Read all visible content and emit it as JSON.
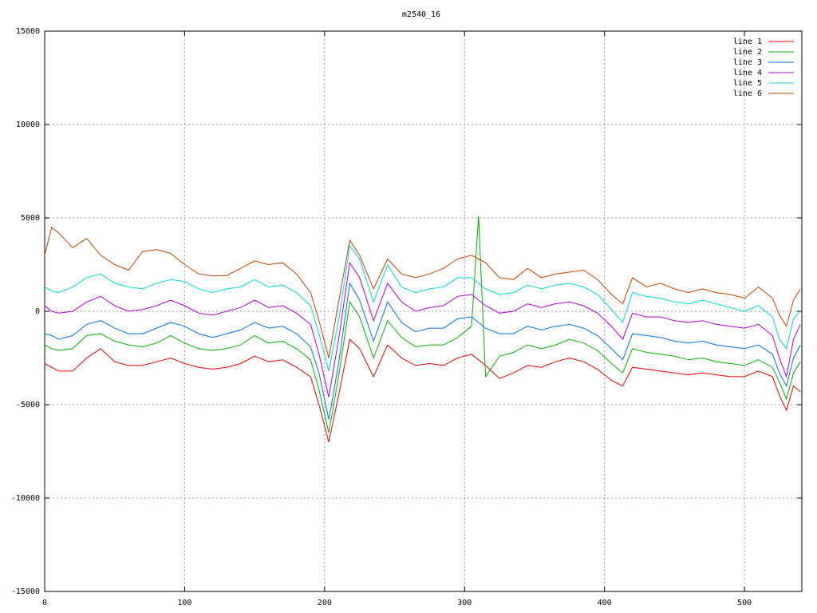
{
  "chart_data": {
    "type": "line",
    "title": "m2540_16",
    "x": [
      0,
      5,
      10,
      20,
      30,
      40,
      50,
      60,
      70,
      80,
      90,
      100,
      110,
      120,
      130,
      140,
      150,
      160,
      170,
      180,
      190,
      196,
      203,
      210,
      218,
      225,
      235,
      245,
      255,
      265,
      275,
      285,
      295,
      305,
      310,
      315,
      325,
      335,
      345,
      355,
      365,
      375,
      385,
      395,
      405,
      413,
      420,
      430,
      440,
      450,
      460,
      470,
      480,
      490,
      500,
      510,
      520,
      525,
      530,
      535,
      540
    ],
    "series": [
      {
        "name": "line 1",
        "color": "#e00000",
        "values": [
          -2800,
          -3000,
          -3200,
          -3200,
          -2500,
          -2000,
          -2700,
          -2900,
          -2900,
          -2700,
          -2500,
          -2800,
          -3000,
          -3100,
          -3000,
          -2800,
          -2400,
          -2700,
          -2600,
          -3000,
          -3500,
          -5000,
          -7000,
          -4500,
          -1500,
          -2000,
          -3500,
          -1800,
          -2500,
          -2900,
          -2800,
          -2900,
          -2500,
          -2300,
          -2600,
          -2900,
          -3600,
          -3300,
          -2900,
          -3000,
          -2700,
          -2500,
          -2700,
          -3100,
          -3700,
          -4000,
          -3000,
          -3100,
          -3200,
          -3300,
          -3400,
          -3300,
          -3400,
          -3500,
          -3500,
          -3200,
          -3500,
          -4500,
          -5300,
          -4000,
          -4300
        ]
      },
      {
        "name": "line 2",
        "color": "#00b000",
        "values": [
          -1800,
          -2000,
          -2100,
          -2000,
          -1300,
          -1200,
          -1600,
          -1800,
          -1900,
          -1700,
          -1300,
          -1700,
          -2000,
          -2100,
          -2000,
          -1800,
          -1300,
          -1700,
          -1600,
          -2000,
          -2600,
          -4200,
          -6500,
          -3500,
          500,
          -300,
          -2500,
          -500,
          -1400,
          -1900,
          -1800,
          -1800,
          -1400,
          -800,
          5100,
          -3500,
          -2400,
          -2200,
          -1800,
          -2000,
          -1800,
          -1500,
          -1700,
          -2100,
          -2800,
          -3300,
          -2000,
          -2200,
          -2300,
          -2400,
          -2600,
          -2500,
          -2700,
          -2800,
          -2900,
          -2600,
          -3000,
          -3800,
          -4700,
          -3300,
          -2700
        ]
      },
      {
        "name": "line 3",
        "color": "#0070e0",
        "values": [
          -1200,
          -1300,
          -1500,
          -1300,
          -700,
          -500,
          -900,
          -1200,
          -1200,
          -900,
          -600,
          -800,
          -1200,
          -1400,
          -1200,
          -1000,
          -600,
          -900,
          -800,
          -1200,
          -1900,
          -3300,
          -5800,
          -2800,
          1500,
          600,
          -1600,
          500,
          -600,
          -1100,
          -900,
          -900,
          -400,
          -300,
          -600,
          -900,
          -1200,
          -1200,
          -800,
          -1000,
          -800,
          -700,
          -900,
          -1300,
          -2000,
          -2600,
          -1200,
          -1300,
          -1400,
          -1600,
          -1700,
          -1600,
          -1800,
          -1900,
          -2000,
          -1800,
          -2300,
          -3300,
          -4000,
          -2500,
          -1800
        ]
      },
      {
        "name": "line 4",
        "color": "#b000d0",
        "values": [
          300,
          0,
          -100,
          0,
          500,
          800,
          300,
          0,
          100,
          300,
          600,
          300,
          -100,
          -200,
          0,
          200,
          600,
          200,
          300,
          -100,
          -700,
          -2300,
          -4600,
          -1500,
          2600,
          1800,
          -500,
          1500,
          500,
          0,
          200,
          300,
          800,
          900,
          600,
          300,
          -100,
          0,
          400,
          200,
          400,
          500,
          300,
          -100,
          -800,
          -1500,
          -100,
          -300,
          -300,
          -500,
          -600,
          -500,
          -700,
          -800,
          -900,
          -700,
          -1300,
          -2500,
          -3500,
          -1500,
          -700
        ]
      },
      {
        "name": "line 5",
        "color": "#00d8d8",
        "values": [
          1300,
          1100,
          1000,
          1300,
          1800,
          2000,
          1500,
          1300,
          1200,
          1500,
          1700,
          1600,
          1200,
          1000,
          1200,
          1300,
          1700,
          1300,
          1400,
          1000,
          300,
          -1200,
          -3200,
          -500,
          3500,
          2800,
          500,
          2500,
          1300,
          1000,
          1200,
          1300,
          1800,
          1800,
          1500,
          1200,
          900,
          1000,
          1400,
          1200,
          1400,
          1500,
          1300,
          900,
          100,
          -600,
          1000,
          800,
          700,
          500,
          400,
          600,
          400,
          200,
          0,
          300,
          -300,
          -1500,
          -2000,
          -400,
          0
        ]
      },
      {
        "name": "line 6",
        "color": "#c04000",
        "values": [
          3000,
          4500,
          4200,
          3400,
          3900,
          3000,
          2500,
          2200,
          3200,
          3300,
          3100,
          2500,
          2000,
          1900,
          1900,
          2300,
          2700,
          2500,
          2600,
          2000,
          1000,
          -500,
          -2500,
          500,
          3800,
          3000,
          1200,
          2800,
          2000,
          1800,
          2000,
          2300,
          2800,
          3000,
          2800,
          2600,
          1800,
          1700,
          2300,
          1800,
          2000,
          2100,
          2200,
          1700,
          900,
          400,
          1800,
          1300,
          1500,
          1200,
          1000,
          1200,
          1000,
          900,
          700,
          1300,
          700,
          -200,
          -800,
          600,
          1200
        ]
      }
    ],
    "xlim": [
      0,
      541
    ],
    "ylim": [
      -15000,
      15000
    ],
    "xticks": [
      0,
      100,
      200,
      300,
      400,
      500
    ],
    "yticks": [
      -15000,
      -10000,
      -5000,
      0,
      5000,
      10000,
      15000
    ],
    "grid": true,
    "legend": "top-right"
  }
}
